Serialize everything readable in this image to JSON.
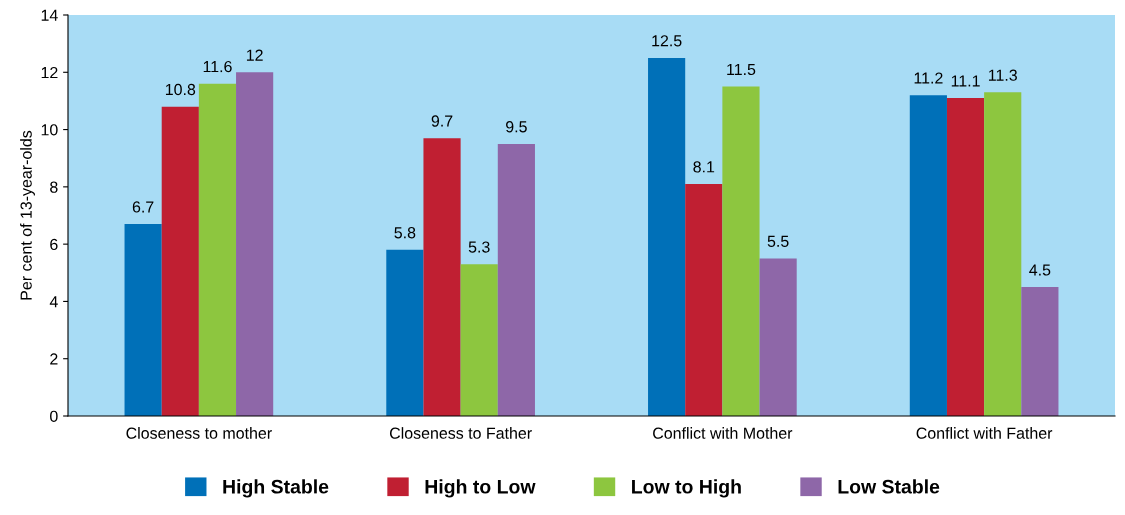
{
  "chart_data": {
    "type": "bar",
    "ylabel": "Per cent of 13-year-olds",
    "categories": [
      "Closeness to mother",
      "Closeness to Father",
      "Conflict with Mother",
      "Conflict with Father"
    ],
    "series": [
      {
        "name": "High Stable",
        "color": "#0070b8",
        "values": [
          6.7,
          5.8,
          12.5,
          11.2
        ]
      },
      {
        "name": "High to Low",
        "color": "#c01f32",
        "values": [
          10.8,
          9.7,
          8.1,
          11.1
        ]
      },
      {
        "name": "Low to High",
        "color": "#8dc63f",
        "values": [
          11.6,
          5.3,
          11.5,
          11.3
        ]
      },
      {
        "name": "Low Stable",
        "color": "#8e67a8",
        "values": [
          12,
          9.5,
          5.5,
          4.5
        ]
      }
    ],
    "ylim": [
      0,
      14
    ],
    "yticks": [
      0,
      2,
      4,
      6,
      8,
      10,
      12,
      14
    ],
    "grid": false,
    "legend": "bottom",
    "data_labels": true
  }
}
